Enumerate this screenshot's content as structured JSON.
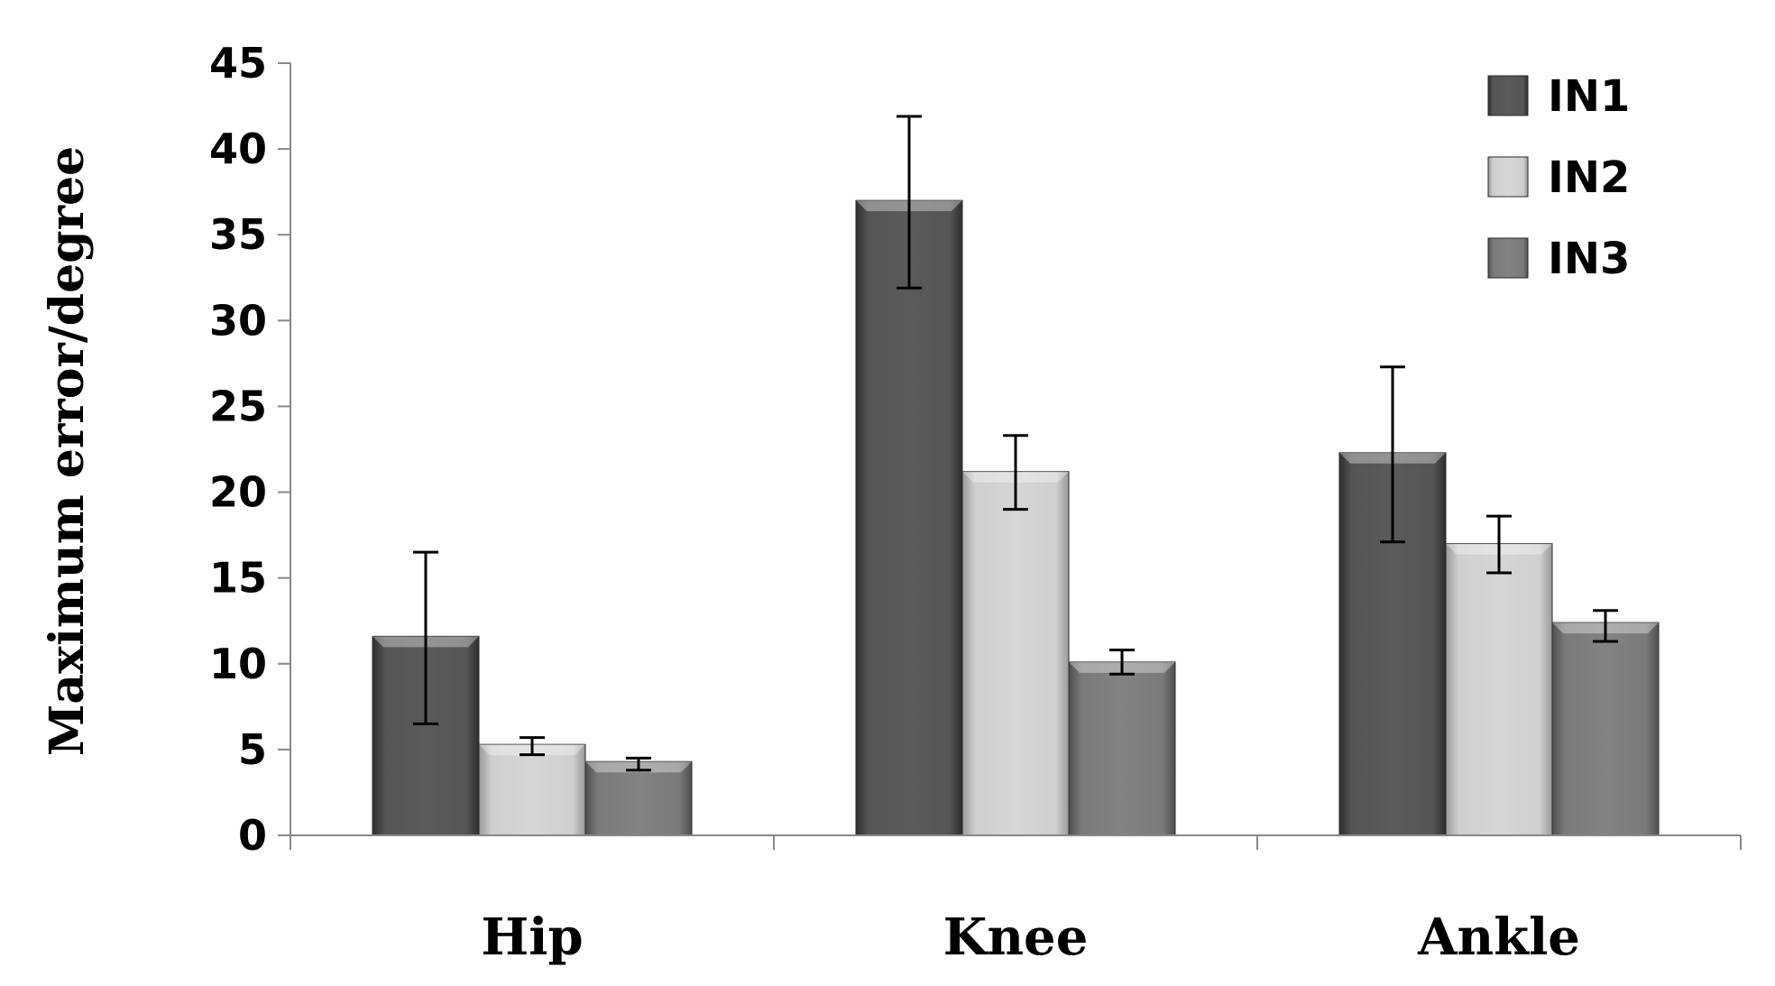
{
  "chart_data": {
    "type": "bar",
    "title": "",
    "xlabel": "",
    "ylabel": "Maximum error/degree",
    "ylim": [
      0,
      45
    ],
    "yticks": [
      0,
      5,
      10,
      15,
      20,
      25,
      30,
      35,
      40,
      45
    ],
    "grid": false,
    "legend_position": "top-right",
    "categories": [
      "Hip",
      "Knee",
      "Ankle"
    ],
    "series": [
      {
        "name": "IN1",
        "color": "#4a4a4a",
        "values": [
          11.6,
          37.0,
          22.3
        ],
        "error_low": [
          6.5,
          31.9,
          17.1
        ],
        "error_high": [
          16.5,
          41.9,
          27.3
        ]
      },
      {
        "name": "IN2",
        "color": "#c4c4c4",
        "values": [
          5.3,
          21.2,
          17.0
        ],
        "error_low": [
          4.7,
          19.0,
          15.3
        ],
        "error_high": [
          5.7,
          23.3,
          18.6
        ]
      },
      {
        "name": "IN3",
        "color": "#777777",
        "values": [
          4.3,
          10.1,
          12.4
        ],
        "error_low": [
          3.8,
          9.4,
          11.3
        ],
        "error_high": [
          4.5,
          10.8,
          13.1
        ]
      }
    ]
  }
}
